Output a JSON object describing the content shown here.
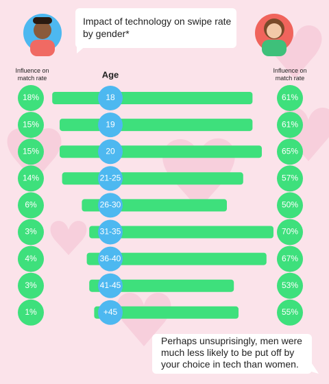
{
  "chart_data": {
    "type": "butterfly",
    "title": "Impact of technology on swipe rate by gender*",
    "left_axis_label": "Influence on match rate",
    "right_axis_label": "Influence on match rate",
    "category_label": "Age",
    "categories": [
      "18",
      "19",
      "20",
      "21-25",
      "26-30",
      "31-35",
      "36-40",
      "41-45",
      "+45"
    ],
    "series": [
      {
        "name": null,
        "color": "#3ee07c",
        "values": [
          18,
          15,
          15,
          14,
          6,
          3,
          4,
          3,
          1
        ],
        "value_labels": [
          "18%",
          "15%",
          "15%",
          "14%",
          "6%",
          "3%",
          "4%",
          "3%",
          "1%"
        ]
      },
      {
        "name": null,
        "color": "#3ee07c",
        "values": [
          61,
          61,
          65,
          57,
          50,
          70,
          67,
          53,
          55
        ],
        "value_labels": [
          "61%",
          "61%",
          "65%",
          "57%",
          "50%",
          "70%",
          "67%",
          "53%",
          "55%"
        ]
      }
    ],
    "footnote": "Perhaps unsuprisingly, men were much less likely to be put off by your choice in tech than women."
  }
}
